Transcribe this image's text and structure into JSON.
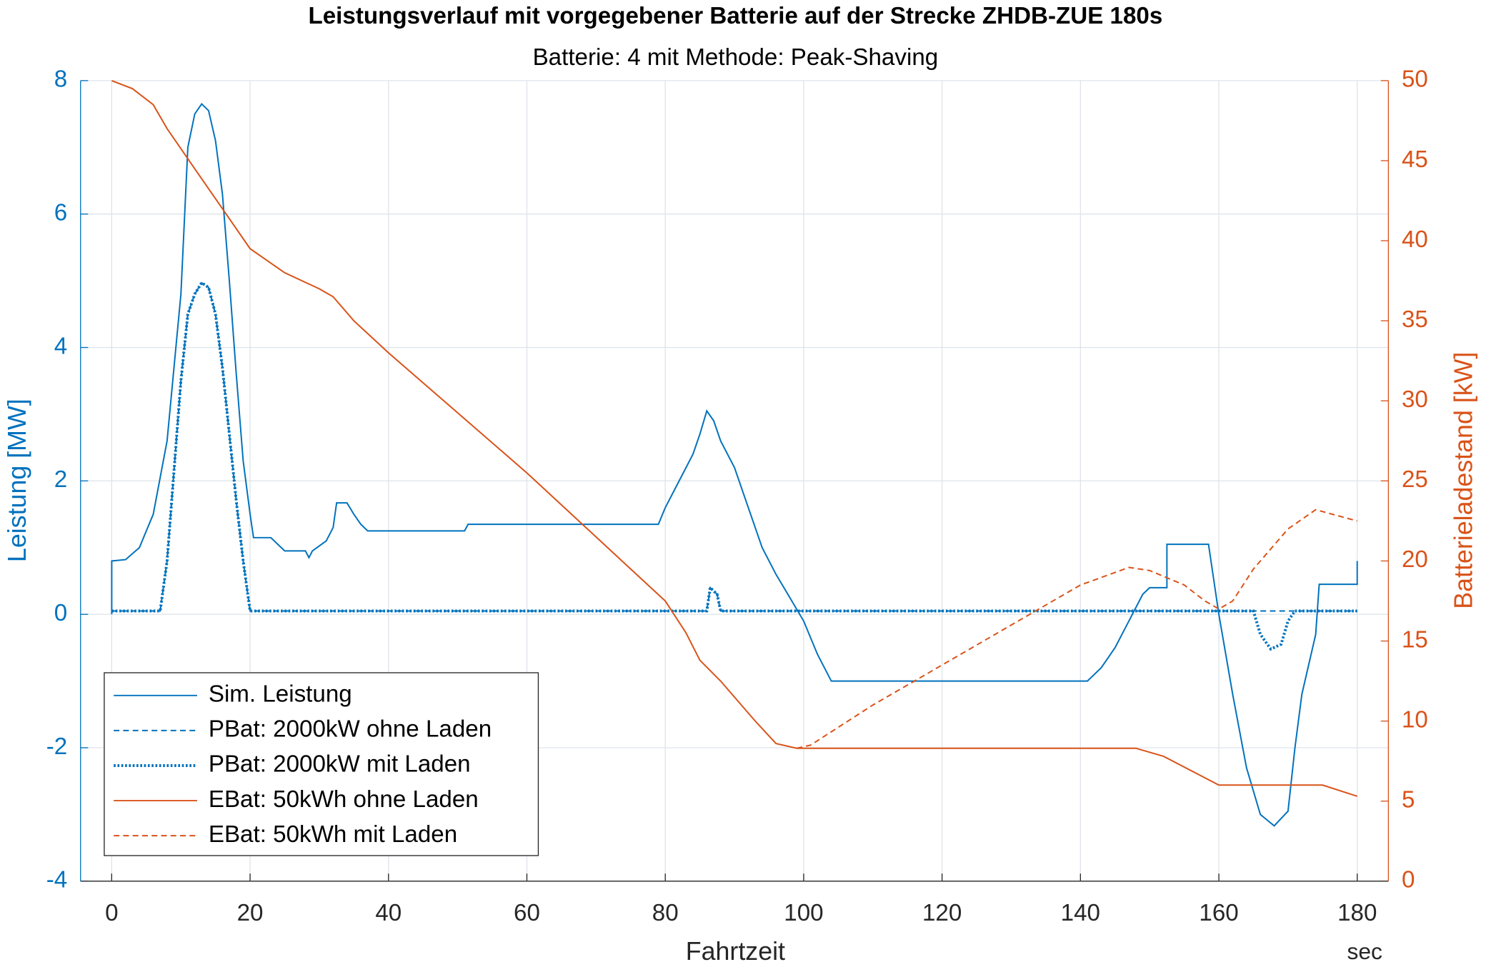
{
  "chart_data": {
    "type": "line",
    "title": "Leistungsverlauf mit vorgegebener Batterie auf der Strecke ZHDB-ZUE 180s",
    "subtitle": "Batterie: 4 mit Methode: Peak-Shaving",
    "x_label": "Fahrtzeit",
    "x_unit": "sec",
    "y_label": "Leistung [MW]",
    "y2_label": "Batterieladestand [kW]",
    "xlim": [
      -4.5,
      184.5
    ],
    "xticks": [
      0,
      20,
      40,
      60,
      80,
      100,
      120,
      140,
      160,
      180
    ],
    "ylim": [
      -4,
      8
    ],
    "yticks": [
      -4,
      -2,
      0,
      2,
      4,
      6,
      8
    ],
    "y2lim": [
      0,
      50
    ],
    "y2ticks": [
      0,
      5,
      10,
      15,
      20,
      25,
      30,
      35,
      40,
      45,
      50
    ],
    "grid": true,
    "legend": "lower left",
    "y_color": "#0072bd",
    "y2_color": "#d95319",
    "series": [
      {
        "name": "Sim. Leistung",
        "color": "#0072bd",
        "style": "solid",
        "x": [
          0,
          0,
          2,
          4,
          6,
          8,
          10,
          11,
          12,
          13,
          14,
          15,
          16,
          17,
          18,
          19,
          20,
          20.5,
          23,
          24,
          25,
          28,
          28.5,
          29,
          31,
          32,
          32.5,
          34,
          35,
          36,
          37,
          51,
          51.5,
          79,
          80,
          82,
          84,
          85,
          86,
          87,
          88,
          90,
          92,
          94,
          96,
          98,
          100,
          102,
          104,
          141,
          143,
          145,
          147,
          149,
          150,
          152.5,
          152.5,
          158.5,
          160,
          162,
          164,
          166,
          168,
          170,
          171,
          172,
          174,
          174.5,
          180,
          180
        ],
        "values": [
          0,
          0.8,
          0.82,
          1.0,
          1.5,
          2.6,
          4.8,
          7.0,
          7.5,
          7.65,
          7.55,
          7.1,
          6.3,
          5.0,
          3.6,
          2.3,
          1.5,
          1.15,
          1.15,
          1.05,
          0.95,
          0.95,
          0.85,
          0.95,
          1.1,
          1.3,
          1.67,
          1.67,
          1.5,
          1.35,
          1.25,
          1.25,
          1.35,
          1.35,
          1.6,
          2.0,
          2.4,
          2.7,
          3.05,
          2.9,
          2.6,
          2.2,
          1.6,
          1.0,
          0.6,
          0.25,
          -0.1,
          -0.6,
          -1.0,
          -1.0,
          -0.8,
          -0.5,
          -0.1,
          0.3,
          0.4,
          0.4,
          1.05,
          1.05,
          0.0,
          -1.2,
          -2.3,
          -3.0,
          -3.17,
          -2.95,
          -2.0,
          -1.2,
          -0.3,
          0.45,
          0.45,
          0.8
        ]
      },
      {
        "name": "PBat: 2000kW ohne Laden",
        "color": "#0072bd",
        "style": "dashed",
        "x": [
          0,
          7,
          8,
          10,
          11,
          12,
          13,
          14,
          15,
          16,
          17,
          18,
          19,
          20,
          86,
          86.5,
          87.5,
          88,
          180
        ],
        "values": [
          0.05,
          0.05,
          0.8,
          3.5,
          4.5,
          4.8,
          4.97,
          4.9,
          4.5,
          3.7,
          2.7,
          1.7,
          0.8,
          0.05,
          0.05,
          0.4,
          0.3,
          0.05,
          0.05
        ]
      },
      {
        "name": "PBat: 2000kW mit Laden",
        "color": "#0072bd",
        "style": "dotted",
        "x": [
          0,
          7,
          8,
          10,
          11,
          12,
          13,
          14,
          15,
          16,
          17,
          18,
          19,
          20,
          86,
          86.5,
          87.5,
          88,
          165,
          166,
          167.5,
          169,
          170,
          171,
          180
        ],
        "values": [
          0.05,
          0.05,
          0.8,
          3.5,
          4.5,
          4.8,
          4.97,
          4.9,
          4.5,
          3.7,
          2.7,
          1.7,
          0.8,
          0.05,
          0.05,
          0.4,
          0.3,
          0.05,
          0.05,
          -0.3,
          -0.52,
          -0.45,
          -0.1,
          0.05,
          0.05
        ]
      },
      {
        "name": "EBat: 50kWh ohne Laden",
        "color": "#d95319",
        "style": "solid",
        "axis": "y2",
        "x": [
          0,
          3,
          6,
          8,
          12,
          16,
          20,
          25,
          30,
          32,
          35,
          40,
          60,
          75,
          80,
          83,
          85,
          88,
          93,
          96,
          99,
          148,
          152,
          160,
          175,
          180
        ],
        "values": [
          50,
          49.5,
          48.5,
          47,
          44.5,
          42,
          39.5,
          38,
          37,
          36.5,
          35,
          33,
          25.5,
          19.5,
          17.5,
          15.5,
          13.8,
          12.5,
          10,
          8.6,
          8.3,
          8.3,
          7.8,
          6,
          6,
          5.3
        ]
      },
      {
        "name": "EBat: 50kWh mit Laden",
        "color": "#d95319",
        "style": "dashed",
        "axis": "y2",
        "x": [
          99,
          101,
          110,
          120,
          130,
          140,
          147,
          150,
          155,
          158,
          160,
          162,
          165,
          170,
          174,
          180
        ],
        "values": [
          8.3,
          8.5,
          11,
          13.5,
          16,
          18.5,
          19.6,
          19.4,
          18.5,
          17.5,
          17,
          17.5,
          19.5,
          22,
          23.2,
          22.5
        ]
      }
    ]
  }
}
